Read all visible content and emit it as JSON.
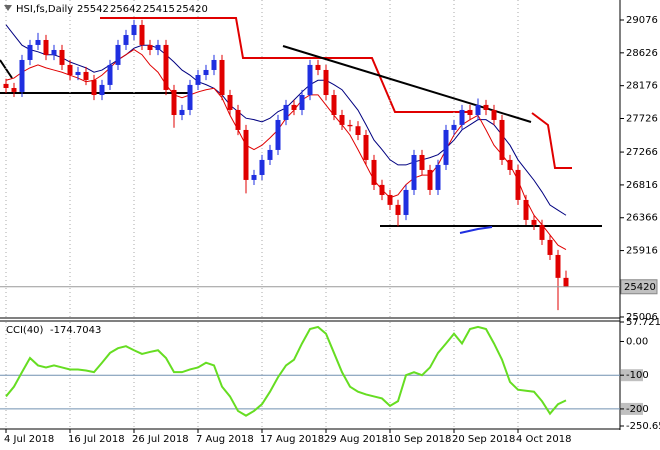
{
  "chart_data": [
    {
      "type": "candlestick",
      "title": "HSI,fs,Daily",
      "open": [
        28200,
        28144,
        28090,
        28528,
        28734,
        28802,
        28596,
        28665,
        28460,
        28322,
        28364,
        28254,
        28048,
        28186,
        28460,
        28734,
        28870,
        29008,
        28734,
        28665,
        28734,
        28117,
        27774,
        27843,
        28186,
        28322,
        28391,
        28528,
        28048,
        27843,
        27569,
        26884,
        26952,
        27158,
        27295,
        27706,
        27912,
        27843,
        28048,
        28460,
        28391,
        28048,
        27774,
        27638,
        27620,
        27500,
        27158,
        26816,
        26678,
        26542,
        26404,
        26747,
        27226,
        27021,
        26747,
        27090,
        27569,
        27638,
        27843,
        27774,
        27912,
        27843,
        27706,
        27158,
        27021,
        26610,
        26336,
        26268,
        26062,
        25856,
        25542
      ],
      "high": [
        28270,
        28214,
        28598,
        28804,
        28900,
        28872,
        28735,
        28735,
        28530,
        28434,
        28434,
        28324,
        28256,
        28530,
        28804,
        28940,
        29078,
        29078,
        28804,
        28804,
        28804,
        28187,
        27913,
        28256,
        28392,
        28461,
        28598,
        28598,
        28118,
        27913,
        27639,
        27022,
        27228,
        27365,
        27776,
        27982,
        27982,
        28118,
        28530,
        28530,
        28461,
        28118,
        27844,
        27708,
        27690,
        27570,
        27228,
        26886,
        26748,
        26612,
        26817,
        27296,
        27296,
        27091,
        27160,
        27639,
        27708,
        27913,
        27913,
        28000,
        27982,
        27913,
        27776,
        27228,
        27091,
        26680,
        26406,
        26338,
        26132,
        25926,
        25642
      ],
      "low": [
        28074,
        28020,
        28020,
        28458,
        28664,
        28526,
        28526,
        28390,
        28252,
        28252,
        28184,
        27978,
        27978,
        28116,
        28390,
        28664,
        28800,
        28664,
        28595,
        28595,
        28047,
        27600,
        27704,
        27773,
        28116,
        28252,
        28321,
        27978,
        27773,
        27499,
        26700,
        26814,
        26882,
        27088,
        27225,
        27636,
        27773,
        27773,
        27978,
        28321,
        27978,
        27704,
        27568,
        27550,
        27430,
        27088,
        26746,
        26608,
        26472,
        26250,
        26334,
        26677,
        26951,
        26677,
        26677,
        27020,
        27499,
        27568,
        27704,
        27704,
        27773,
        27636,
        27088,
        26951,
        26540,
        26266,
        26198,
        25992,
        25786,
        25100,
        25415
      ],
      "close": [
        28144,
        28090,
        28528,
        28734,
        28802,
        28596,
        28665,
        28460,
        28322,
        28364,
        28254,
        28048,
        28186,
        28460,
        28734,
        28870,
        29008,
        28734,
        28665,
        28734,
        28117,
        27774,
        27843,
        28186,
        28322,
        28391,
        28528,
        28048,
        27843,
        27569,
        26884,
        26952,
        27158,
        27295,
        27706,
        27912,
        27843,
        28048,
        28460,
        28391,
        28048,
        27774,
        27638,
        27620,
        27500,
        27158,
        26816,
        26678,
        26542,
        26404,
        26747,
        27226,
        27021,
        26747,
        27090,
        27569,
        27638,
        27843,
        27774,
        27912,
        27843,
        27706,
        27158,
        27021,
        26610,
        26336,
        26268,
        26062,
        25856,
        25542,
        25420
      ],
      "up_color": "#1f2fe0",
      "down_color": "#e00000",
      "series": [
        {
          "color": "#000080",
          "values": [
            29010,
            28870,
            28730,
            28670,
            28640,
            28600,
            28600,
            28560,
            28500,
            28460,
            28420,
            28360,
            28390,
            28460,
            28530,
            28600,
            28690,
            28730,
            28730,
            28690,
            28600,
            28500,
            28390,
            28320,
            28230,
            28190,
            28140,
            28050,
            27910,
            27820,
            27730,
            27710,
            27680,
            27730,
            27820,
            27870,
            27980,
            28090,
            28190,
            28250,
            28250,
            28190,
            28120,
            27980,
            27840,
            27640,
            27430,
            27300,
            27160,
            27090,
            27090,
            27130,
            27160,
            27190,
            27230,
            27320,
            27430,
            27570,
            27640,
            27710,
            27710,
            27640,
            27500,
            27360,
            27160,
            27020,
            26880,
            26720,
            26540,
            26470,
            26400
          ]
        },
        {
          "color": "#e00000",
          "values": [
            28250,
            28280,
            28360,
            28420,
            28460,
            28420,
            28390,
            28360,
            28320,
            28280,
            28230,
            28250,
            28320,
            28420,
            28530,
            28600,
            28670,
            28600,
            28460,
            28360,
            28190,
            28050,
            28010,
            28050,
            28090,
            28120,
            28140,
            28010,
            27770,
            27570,
            27360,
            27300,
            27360,
            27460,
            27570,
            27730,
            27840,
            27980,
            28050,
            28050,
            27910,
            27770,
            27640,
            27500,
            27300,
            27090,
            26880,
            26750,
            26640,
            26680,
            26820,
            26910,
            26950,
            26950,
            27090,
            27300,
            27500,
            27640,
            27710,
            27770,
            27570,
            27360,
            27230,
            27090,
            26880,
            26610,
            26400,
            26270,
            26130,
            25990,
            25930
          ]
        }
      ],
      "ylim": [
        24992,
        29350
      ],
      "yticks": [
        29076,
        28626,
        28176,
        27726,
        27266,
        26816,
        26366,
        25916,
        25006
      ],
      "xticks": [
        {
          "value": 0,
          "label": "4 Jul 2018"
        },
        {
          "value": 8,
          "label": "16 Jul 2018"
        },
        {
          "value": 16,
          "label": "26 Jul 2018"
        },
        {
          "value": 24,
          "label": "7 Aug 2018"
        },
        {
          "value": 32,
          "label": "17 Aug 2018"
        },
        {
          "value": 40,
          "label": "29 Aug 2018"
        },
        {
          "value": 48,
          "label": "10 Sep 2018"
        },
        {
          "value": 56,
          "label": "20 Sep 2018"
        },
        {
          "value": 64,
          "label": "4 Oct 2018"
        }
      ],
      "grid": true
    },
    {
      "type": "line",
      "title": "CCI(40)",
      "color": "#66dd22",
      "values": [
        -163,
        -134,
        -91,
        -49,
        -71,
        -77,
        -71,
        -77,
        -83,
        -83,
        -86,
        -91,
        -63,
        -34,
        -20,
        -14,
        -26,
        -37,
        -31,
        -26,
        -49,
        -91,
        -91,
        -83,
        -77,
        -63,
        -71,
        -134,
        -163,
        -206,
        -220,
        -206,
        -186,
        -149,
        -106,
        -71,
        -54,
        -6,
        37,
        43,
        23,
        -34,
        -91,
        -134,
        -149,
        -157,
        -163,
        -169,
        -191,
        -177,
        -100,
        -91,
        -100,
        -77,
        -34,
        -6,
        23,
        -6,
        37,
        43,
        37,
        -6,
        -54,
        -120,
        -143,
        -146,
        -149,
        -177,
        -214,
        -186,
        -174.7043
      ],
      "ylim": [
        -250.65,
        57.7214
      ],
      "yticks": [
        57.7214,
        {
          "value": 0,
          "label": "0.00"
        },
        -100,
        -200,
        {
          "value": -250.65,
          "label": "-250.650"
        }
      ],
      "levels": [
        -100,
        -200
      ],
      "level_color": "#7090b0"
    }
  ]
}
